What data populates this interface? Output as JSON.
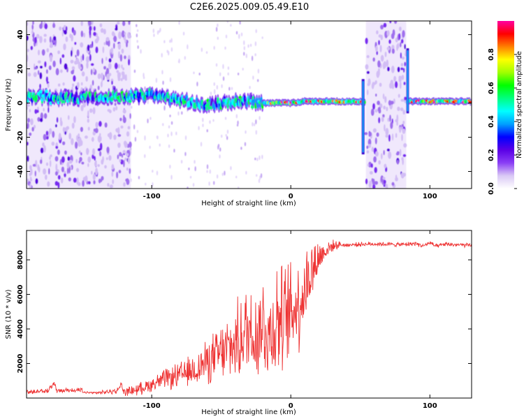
{
  "title": "C2E6.2025.009.05.49.E10",
  "chart_data": [
    {
      "type": "heatmap",
      "xlabel": "Height of straight line (km)",
      "ylabel": "Frequency (Hz)",
      "xlim": [
        -190,
        130
      ],
      "ylim": [
        -50,
        48
      ],
      "xticks": [
        -100,
        0,
        100
      ],
      "yticks": [
        -40,
        -20,
        0,
        20,
        40
      ],
      "colorbar": {
        "label": "Normalized spectral amplitude",
        "range": [
          0.0,
          1.0
        ],
        "ticks": [
          "0.0",
          "0.2",
          "0.4",
          "0.6",
          "0.8"
        ],
        "colormap": [
          "#ffffff",
          "#d9c8f5",
          "#8a3ef5",
          "#5a00e6",
          "#0000ff",
          "#00a0ff",
          "#00ffff",
          "#00ff80",
          "#00ff00",
          "#a0ff00",
          "#ffff00",
          "#ff8000",
          "#ff0000",
          "#ff00a0"
        ]
      },
      "signal_trace": {
        "x": [
          -190,
          -170,
          -150,
          -130,
          -110,
          -100,
          -90,
          -80,
          -70,
          -60,
          -50,
          -40,
          -30,
          -20,
          -10,
          0,
          10,
          20,
          30,
          40,
          50,
          55,
          85,
          90,
          100,
          110,
          120,
          130
        ],
        "y": [
          4,
          3,
          3,
          4,
          4,
          5,
          3,
          2,
          0,
          -1,
          0,
          1,
          1,
          0,
          0,
          0,
          1,
          1,
          1,
          1,
          1,
          0,
          1,
          1,
          1,
          1,
          1,
          1
        ]
      },
      "noise_bands": [
        [
          -190,
          -115
        ],
        [
          54,
          83
        ]
      ],
      "spikes": [
        {
          "x": 52,
          "y_range": [
            -30,
            14
          ]
        },
        {
          "x": 84,
          "y_range": [
            -6,
            32
          ]
        }
      ]
    },
    {
      "type": "line",
      "xlabel": "Height of straight line (km)",
      "ylabel": "SNR (10 * v/v)",
      "xlim": [
        -190,
        130
      ],
      "ylim": [
        0,
        9700
      ],
      "xticks": [
        -100,
        0,
        100
      ],
      "yticks": [
        2000,
        4000,
        6000,
        8000
      ],
      "series": [
        {
          "color": "#ee3333",
          "x": [
            -190,
            -175,
            -170,
            -168,
            -160,
            -140,
            -125,
            -122,
            -120,
            -110,
            -100,
            -90,
            -80,
            -70,
            -60,
            -50,
            -40,
            -35,
            -30,
            -25,
            -20,
            -15,
            -10,
            -5,
            0,
            5,
            10,
            15,
            20,
            25,
            30,
            35,
            40,
            50,
            60,
            70,
            80,
            90,
            95,
            100,
            105,
            110,
            120,
            130
          ],
          "y": [
            200,
            300,
            700,
            250,
            350,
            300,
            400,
            800,
            350,
            500,
            800,
            1100,
            1300,
            1600,
            2100,
            2600,
            3100,
            3600,
            4000,
            3800,
            4300,
            3600,
            4700,
            4400,
            5000,
            5500,
            6300,
            7400,
            8100,
            8550,
            8800,
            8880,
            8850,
            8900,
            8920,
            8900,
            8880,
            8950,
            8800,
            8980,
            8760,
            8900,
            8870,
            8820
          ],
          "spread": [
            0,
            0,
            0,
            0,
            0,
            100,
            200,
            200,
            250,
            400,
            500,
            700,
            900,
            1100,
            1500,
            2000,
            2500,
            3000,
            3400,
            3500,
            3500,
            3700,
            3800,
            3700,
            3600,
            3400,
            3000,
            2200,
            1400,
            700,
            400,
            200,
            150,
            150,
            150,
            150,
            150,
            150,
            150,
            150,
            150,
            150,
            150,
            150
          ]
        }
      ]
    }
  ]
}
